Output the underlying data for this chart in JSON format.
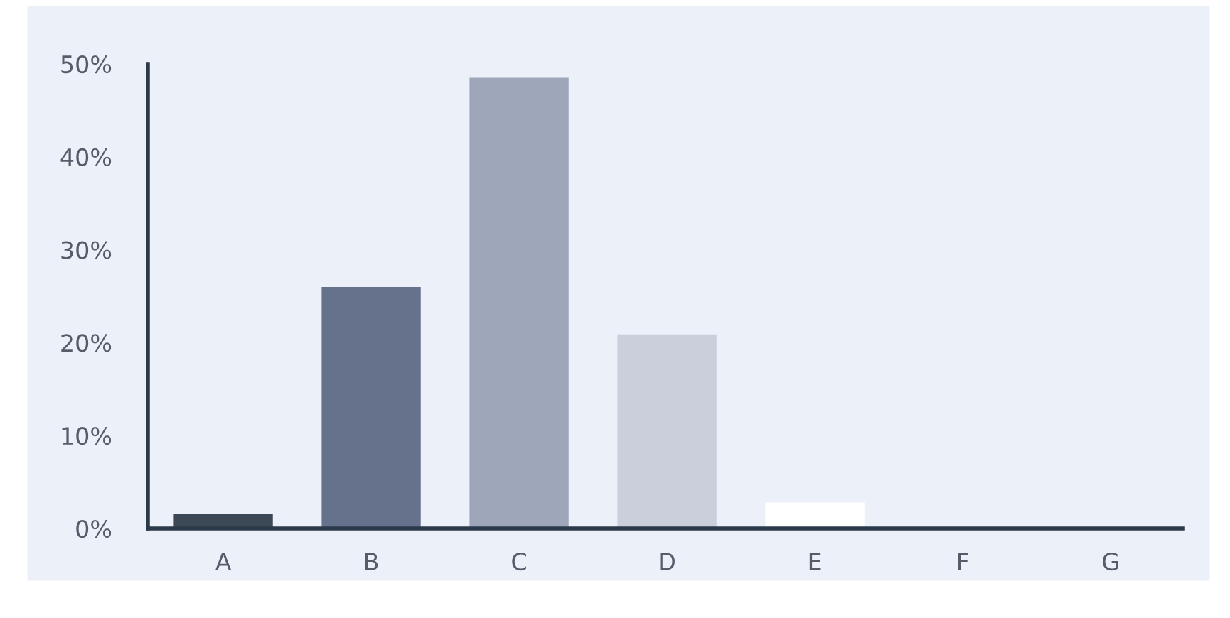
{
  "chart_data": {
    "type": "bar",
    "categories": [
      "A",
      "B",
      "C",
      "D",
      "E",
      "F",
      "G"
    ],
    "values": [
      1.6,
      26.0,
      48.5,
      20.9,
      2.8,
      0,
      0
    ],
    "colors": [
      "#3d4857",
      "#66728c",
      "#9ea6ba",
      "#cbcfdb",
      "#ffffff",
      "#ffffff",
      "#ffffff"
    ],
    "ylim": [
      0,
      50
    ],
    "yticks": [
      {
        "value": 0,
        "label": "0%"
      },
      {
        "value": 10,
        "label": "10%"
      },
      {
        "value": 20,
        "label": "20%"
      },
      {
        "value": 30,
        "label": "30%"
      },
      {
        "value": 40,
        "label": "40%"
      },
      {
        "value": 50,
        "label": "50%"
      }
    ],
    "grid": false,
    "legend": false
  }
}
